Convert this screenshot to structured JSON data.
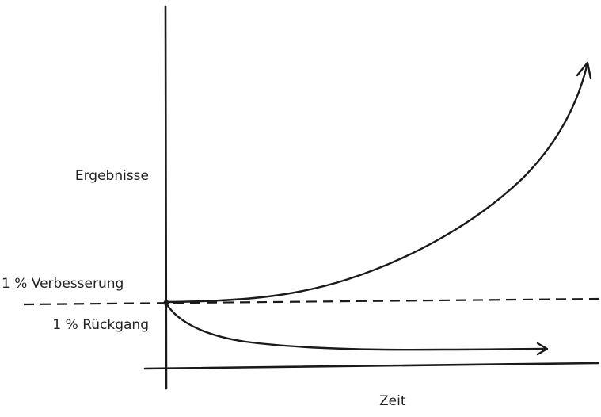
{
  "diagram": {
    "y_axis_label": "Ergebnisse",
    "x_axis_label": "Zeit",
    "improvement_label": "1 % Verbesserung",
    "decline_label": "1 % Rückgang",
    "line_color": "#1a1a1a"
  }
}
